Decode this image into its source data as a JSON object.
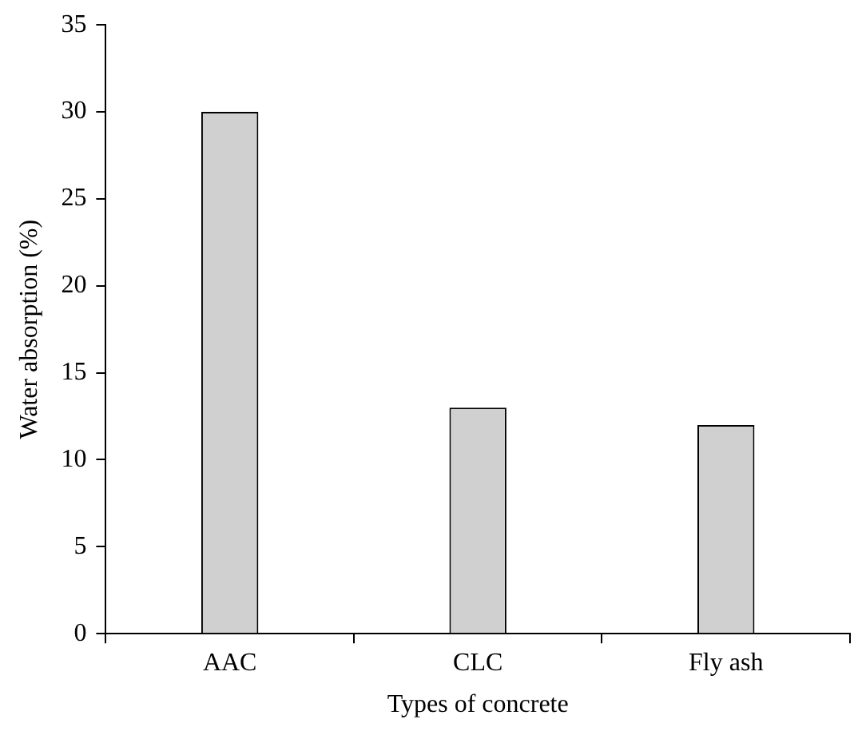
{
  "chart_data": {
    "type": "bar",
    "xlabel": "Types of concrete",
    "ylabel": "Water absorption (%)",
    "categories": [
      "AAC",
      "CLC",
      "Fly ash"
    ],
    "values": [
      30,
      13,
      12
    ],
    "color": "#d0d0d0",
    "ylim": [
      0,
      35
    ],
    "yticks": [
      0,
      5,
      10,
      15,
      20,
      25,
      30,
      35
    ],
    "grid": false,
    "legend": false
  }
}
